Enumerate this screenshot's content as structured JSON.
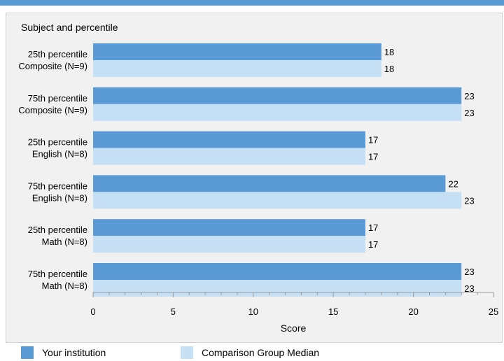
{
  "chart_data": {
    "type": "bar",
    "orientation": "horizontal",
    "title": "Subject and percentile",
    "xlabel": "Score",
    "ylabel": "",
    "xlim": [
      0,
      25
    ],
    "x_ticks": [
      0,
      5,
      10,
      15,
      20,
      25
    ],
    "categories": [
      [
        "25th percentile",
        "Composite (N=9)"
      ],
      [
        "75th percentile",
        "Composite (N=9)"
      ],
      [
        "25th percentile",
        "English (N=8)"
      ],
      [
        "75th percentile",
        "English (N=8)"
      ],
      [
        "25th percentile",
        "Math (N=8)"
      ],
      [
        "75th percentile",
        "Math (N=8)"
      ]
    ],
    "series": [
      {
        "name": "Your institution",
        "color": "#5b9bd5",
        "values": [
          18,
          23,
          17,
          22,
          17,
          23
        ]
      },
      {
        "name": "Comparison Group Median",
        "color": "#c5e0f5",
        "values": [
          18,
          23,
          17,
          23,
          17,
          23
        ]
      }
    ],
    "grid": false,
    "legend_position": "bottom"
  }
}
